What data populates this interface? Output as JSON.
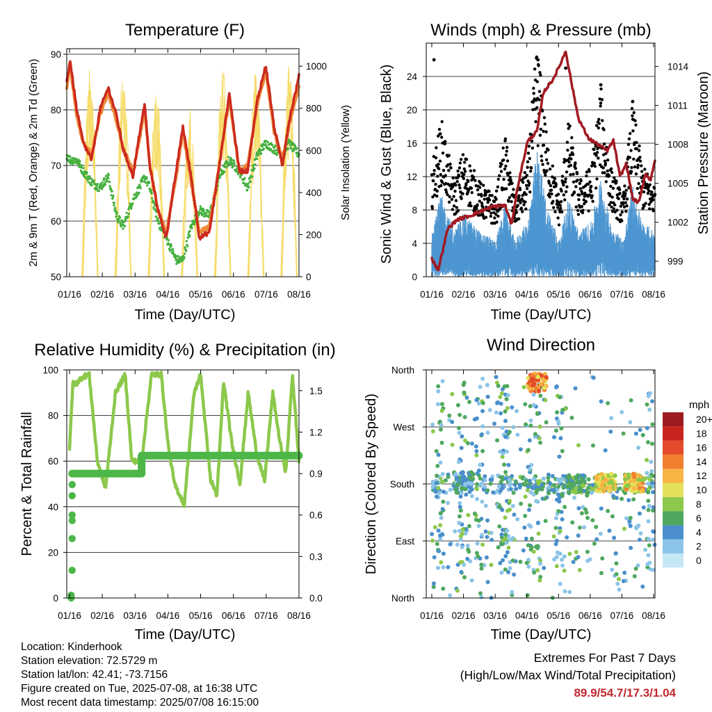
{
  "colors": {
    "temp_2m": "#cc2a1e",
    "temp_9m": "#ee8a3a",
    "dewpoint": "#46b140",
    "solar": "#f6dc6a",
    "wind_speed": "#4d96d1",
    "wind_gust": "#000000",
    "pressure": "#a11a22",
    "rh": "#8cc84b",
    "precip": "#4cb748",
    "extremes_values": "#c1272d"
  },
  "time_axis": {
    "label": "Time (Day/UTC)",
    "ticks": [
      "01/16",
      "02/16",
      "03/16",
      "04/16",
      "05/16",
      "06/16",
      "07/16",
      "08/16"
    ]
  },
  "panels": {
    "temperature": {
      "title": "Temperature (F)",
      "ylabel_left": "2m & 9m T (Red, Orange) & 2m Td (Green)",
      "ylabel_right": "Solar Insolation (Yellow)",
      "yticks_left": [
        "50",
        "60",
        "70",
        "80",
        "90"
      ],
      "yticks_right": [
        "0",
        "200",
        "400",
        "600",
        "800",
        "1000"
      ]
    },
    "winds": {
      "title": "Winds (mph) & Pressure (mb)",
      "ylabel_left": "Sonic Wind & Gust (Blue, Black)",
      "ylabel_right": "Station Pressure (Maroon)",
      "yticks_left": [
        "0",
        "4",
        "8",
        "12",
        "16",
        "20",
        "24"
      ],
      "yticks_right": [
        "999",
        "1002",
        "1005",
        "1008",
        "1011",
        "1014"
      ]
    },
    "humidity": {
      "title": "Relative Humidity (%) & Precipitation (in)",
      "ylabel_left": "Percent & Total Rainfall",
      "yticks_left": [
        "0",
        "20",
        "40",
        "60",
        "80",
        "100"
      ],
      "yticks_right": [
        "0.0",
        "0.3",
        "0.6",
        "0.9",
        "1.2",
        "1.5"
      ]
    },
    "direction": {
      "title": "Wind Direction",
      "ylabel_left": "Direction (Colored By Speed)",
      "yticks_left": [
        "North",
        "East",
        "South",
        "West",
        "North"
      ],
      "legend_title": "mph",
      "legend_labels": [
        "0",
        "2",
        "4",
        "6",
        "8",
        "10",
        "12",
        "14",
        "16",
        "18",
        "20+"
      ],
      "legend_colors": [
        "#c6e7f5",
        "#8cc4e8",
        "#4a8fcb",
        "#4fa85e",
        "#8cc84b",
        "#e3e15a",
        "#f8b444",
        "#f07f2e",
        "#e34b2a",
        "#c8241f",
        "#9b1b1e"
      ]
    }
  },
  "info": {
    "location": "Location: Kinderhook",
    "elevation": "Station elevation: 72.5729 m",
    "latlon": "Station lat/lon: 42.41; -73.7156",
    "created": "Figure created on Tue, 2025-07-08, at 16:38 UTC",
    "latest": "Most recent data timestamp: 2025/07/08 16:15:00"
  },
  "extremes": {
    "line1": "Extremes For Past 7 Days",
    "line2": "(High/Low/Max Wind/Total Precipitation)",
    "values": "89.9/54.7/17.3/1.04"
  },
  "chart_data": [
    {
      "type": "line",
      "title": "Temperature (F)",
      "xlabel": "Time (Day/UTC)",
      "ylabel": "2m & 9m T (Red, Orange) & 2m Td (Green)",
      "y2label": "Solar Insolation (Yellow)",
      "x_days": [
        0,
        0.1,
        0.3,
        0.5,
        0.75,
        1.0,
        1.25,
        1.5,
        1.7,
        2.0,
        2.2,
        2.35,
        2.5,
        2.75,
        3.0,
        3.3,
        3.5,
        3.75,
        4.0,
        4.3,
        4.6,
        4.9,
        5.2,
        5.45,
        5.75,
        6.0,
        6.25,
        6.5,
        6.7,
        7.0
      ],
      "ylim": [
        50,
        90
      ],
      "y2lim": [
        0,
        1050
      ],
      "series": [
        {
          "name": "2m T",
          "values": [
            85,
            89,
            80,
            74,
            71,
            80,
            84,
            79,
            73,
            68,
            76,
            81,
            70,
            62,
            57,
            69,
            77,
            68,
            57,
            58,
            70,
            83,
            69,
            69,
            82,
            88,
            77,
            70,
            78,
            86
          ]
        },
        {
          "name": "9m T",
          "values": [
            84,
            88,
            79,
            74,
            72,
            79,
            83,
            78,
            73,
            69,
            75,
            80,
            70,
            62,
            58,
            68,
            76,
            67,
            58,
            59,
            70,
            82,
            69,
            70,
            81,
            87,
            76,
            71,
            77,
            84
          ]
        },
        {
          "name": "2m Td",
          "values": [
            72,
            71,
            71,
            69,
            67,
            66,
            68,
            61,
            59,
            64,
            66,
            68,
            66,
            60,
            57,
            53,
            53,
            59,
            62,
            61,
            68,
            71,
            69,
            66,
            72,
            74,
            73,
            72,
            74,
            72
          ]
        },
        {
          "name": "Solar",
          "values": [
            0,
            1000,
            0,
            0,
            700,
            1020,
            0,
            0,
            500,
            0,
            1020,
            900,
            0,
            0,
            800,
            0,
            1010,
            0,
            0,
            1000,
            0,
            800,
            0,
            0,
            1000,
            0,
            0,
            1020,
            0,
            0
          ]
        }
      ]
    },
    {
      "type": "line",
      "title": "Winds (mph) & Pressure (mb)",
      "xlabel": "Time (Day/UTC)",
      "ylabel": "Sonic Wind & Gust (Blue, Black)",
      "y2label": "Station Pressure (Maroon)",
      "ylim": [
        0,
        28
      ],
      "y2lim": [
        997.8,
        1015.8
      ],
      "pressure": {
        "x_days": [
          0,
          0.2,
          0.5,
          0.8,
          1.2,
          1.5,
          1.9,
          2.3,
          2.5,
          2.7,
          3.0,
          3.3,
          3.5,
          3.8,
          4.0,
          4.2,
          4.4,
          4.6,
          4.9,
          5.2,
          5.5,
          5.7,
          5.9,
          6.1,
          6.3,
          6.5,
          6.7,
          6.85,
          7.0
        ],
        "values": [
          999.2,
          998.3,
          1001.5,
          1002.2,
          1002.5,
          1002.8,
          1003.2,
          1003.3,
          1001.8,
          1004.8,
          1008.2,
          1009.0,
          1012.0,
          1013.0,
          1014.0,
          1015.2,
          1012.5,
          1010.0,
          1008.5,
          1008.0,
          1007.5,
          1008.3,
          1005.5,
          1006.5,
          1003.8,
          1003.5,
          1005.8,
          1005.2,
          1006.8
        ]
      },
      "gust_peaks": [
        {
          "x_day": 0.07,
          "value": 26
        },
        {
          "x_day": 3.33,
          "value": 26
        },
        {
          "x_day": 4.2,
          "value": 25
        },
        {
          "x_day": 5.3,
          "value": 23
        },
        {
          "x_day": 6.3,
          "value": 21
        }
      ]
    },
    {
      "type": "line",
      "title": "Relative Humidity (%) & Precipitation (in)",
      "xlabel": "Time (Day/UTC)",
      "ylabel": "Percent & Total Rainfall",
      "ylim": [
        0,
        100
      ],
      "y2lim": [
        0.0,
        1.65
      ],
      "rh": {
        "x_days": [
          0,
          0.1,
          0.2,
          0.4,
          0.6,
          0.85,
          1.1,
          1.4,
          1.7,
          1.9,
          2.2,
          2.5,
          2.8,
          3.0,
          3.2,
          3.5,
          3.8,
          4.0,
          4.3,
          4.5,
          4.7,
          4.95,
          5.2,
          5.45,
          5.7,
          5.95,
          6.2,
          6.4,
          6.6,
          6.8,
          7.0
        ],
        "values": [
          65,
          94,
          94,
          97,
          98,
          60,
          48,
          90,
          98,
          60,
          60,
          98,
          98,
          68,
          50,
          41,
          90,
          98,
          52,
          45,
          95,
          68,
          50,
          90,
          64,
          51,
          90,
          70,
          55,
          98,
          60
        ]
      },
      "precip": {
        "x_days": [
          0,
          0.05,
          0.05,
          0.08,
          0.1,
          0.15,
          0.2,
          0.25,
          2.2,
          2.2,
          7.0
        ],
        "values": [
          0.0,
          0.02,
          0.2,
          0.43,
          0.56,
          0.6,
          0.74,
          0.9,
          0.9,
          1.03,
          1.03
        ]
      }
    },
    {
      "type": "scatter",
      "title": "Wind Direction",
      "xlabel": "Time (Day/UTC)",
      "ylabel": "Direction (Colored By Speed)",
      "yticks": [
        "North",
        "East",
        "South",
        "West",
        "North"
      ],
      "legend": {
        "title": "mph",
        "labels": [
          "0",
          "2",
          "4",
          "6",
          "8",
          "10",
          "12",
          "14",
          "16",
          "18",
          "20+"
        ]
      },
      "clusters": [
        {
          "x_day": 3.3,
          "direction": "North-West",
          "speed": 16
        },
        {
          "x_day": 5.45,
          "direction": "South",
          "speed": 12
        },
        {
          "x_day": 6.35,
          "direction": "South",
          "speed": 12
        },
        {
          "x_day": 4.5,
          "direction": "South",
          "speed": 6
        },
        {
          "x_day": 1.0,
          "direction": "South",
          "speed": 4
        }
      ]
    }
  ]
}
